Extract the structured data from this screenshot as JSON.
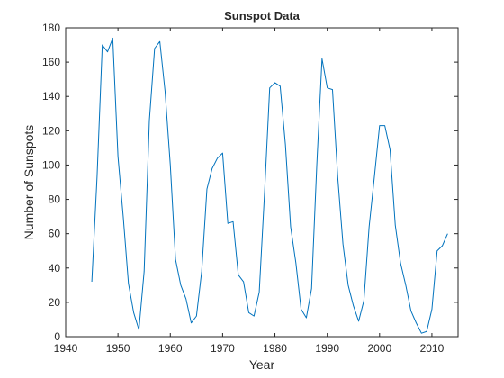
{
  "chart_data": {
    "type": "line",
    "title": "Sunspot Data",
    "xlabel": "Year",
    "ylabel": "Number of Sunspots",
    "xlim": [
      1940,
      2015
    ],
    "ylim": [
      0,
      180
    ],
    "xticks": [
      1940,
      1950,
      1960,
      1970,
      1980,
      1990,
      2000,
      2010
    ],
    "yticks": [
      0,
      20,
      40,
      60,
      80,
      100,
      120,
      140,
      160,
      180
    ],
    "grid": false,
    "series": [
      {
        "color": "#0072bd",
        "x": [
          1945,
          1946,
          1947,
          1948,
          1949,
          1950,
          1951,
          1952,
          1953,
          1954,
          1955,
          1956,
          1957,
          1958,
          1959,
          1960,
          1961,
          1962,
          1963,
          1964,
          1965,
          1966,
          1967,
          1968,
          1969,
          1970,
          1971,
          1972,
          1973,
          1974,
          1975,
          1976,
          1977,
          1978,
          1979,
          1980,
          1981,
          1982,
          1983,
          1984,
          1985,
          1986,
          1987,
          1988,
          1989,
          1990,
          1991,
          1992,
          1993,
          1994,
          1995,
          1996,
          1997,
          1998,
          1999,
          2000,
          2001,
          2002,
          2003,
          2004,
          2005,
          2006,
          2007,
          2008,
          2009,
          2010,
          2011,
          2012,
          2013
        ],
        "y": [
          32,
          93,
          170,
          166,
          174,
          105,
          70,
          31,
          14,
          4,
          38,
          126,
          168,
          172,
          143,
          100,
          45,
          30,
          22,
          8,
          12,
          38,
          86,
          98,
          104,
          107,
          66,
          67,
          36,
          32,
          14,
          12,
          26,
          83,
          145,
          148,
          146,
          112,
          64,
          43,
          16,
          11,
          28,
          100,
          162,
          145,
          144,
          93,
          54,
          30,
          18,
          9,
          21,
          64,
          93,
          123,
          123,
          109,
          65,
          43,
          30,
          15,
          8,
          2,
          3,
          16,
          50,
          53,
          60
        ]
      }
    ]
  }
}
